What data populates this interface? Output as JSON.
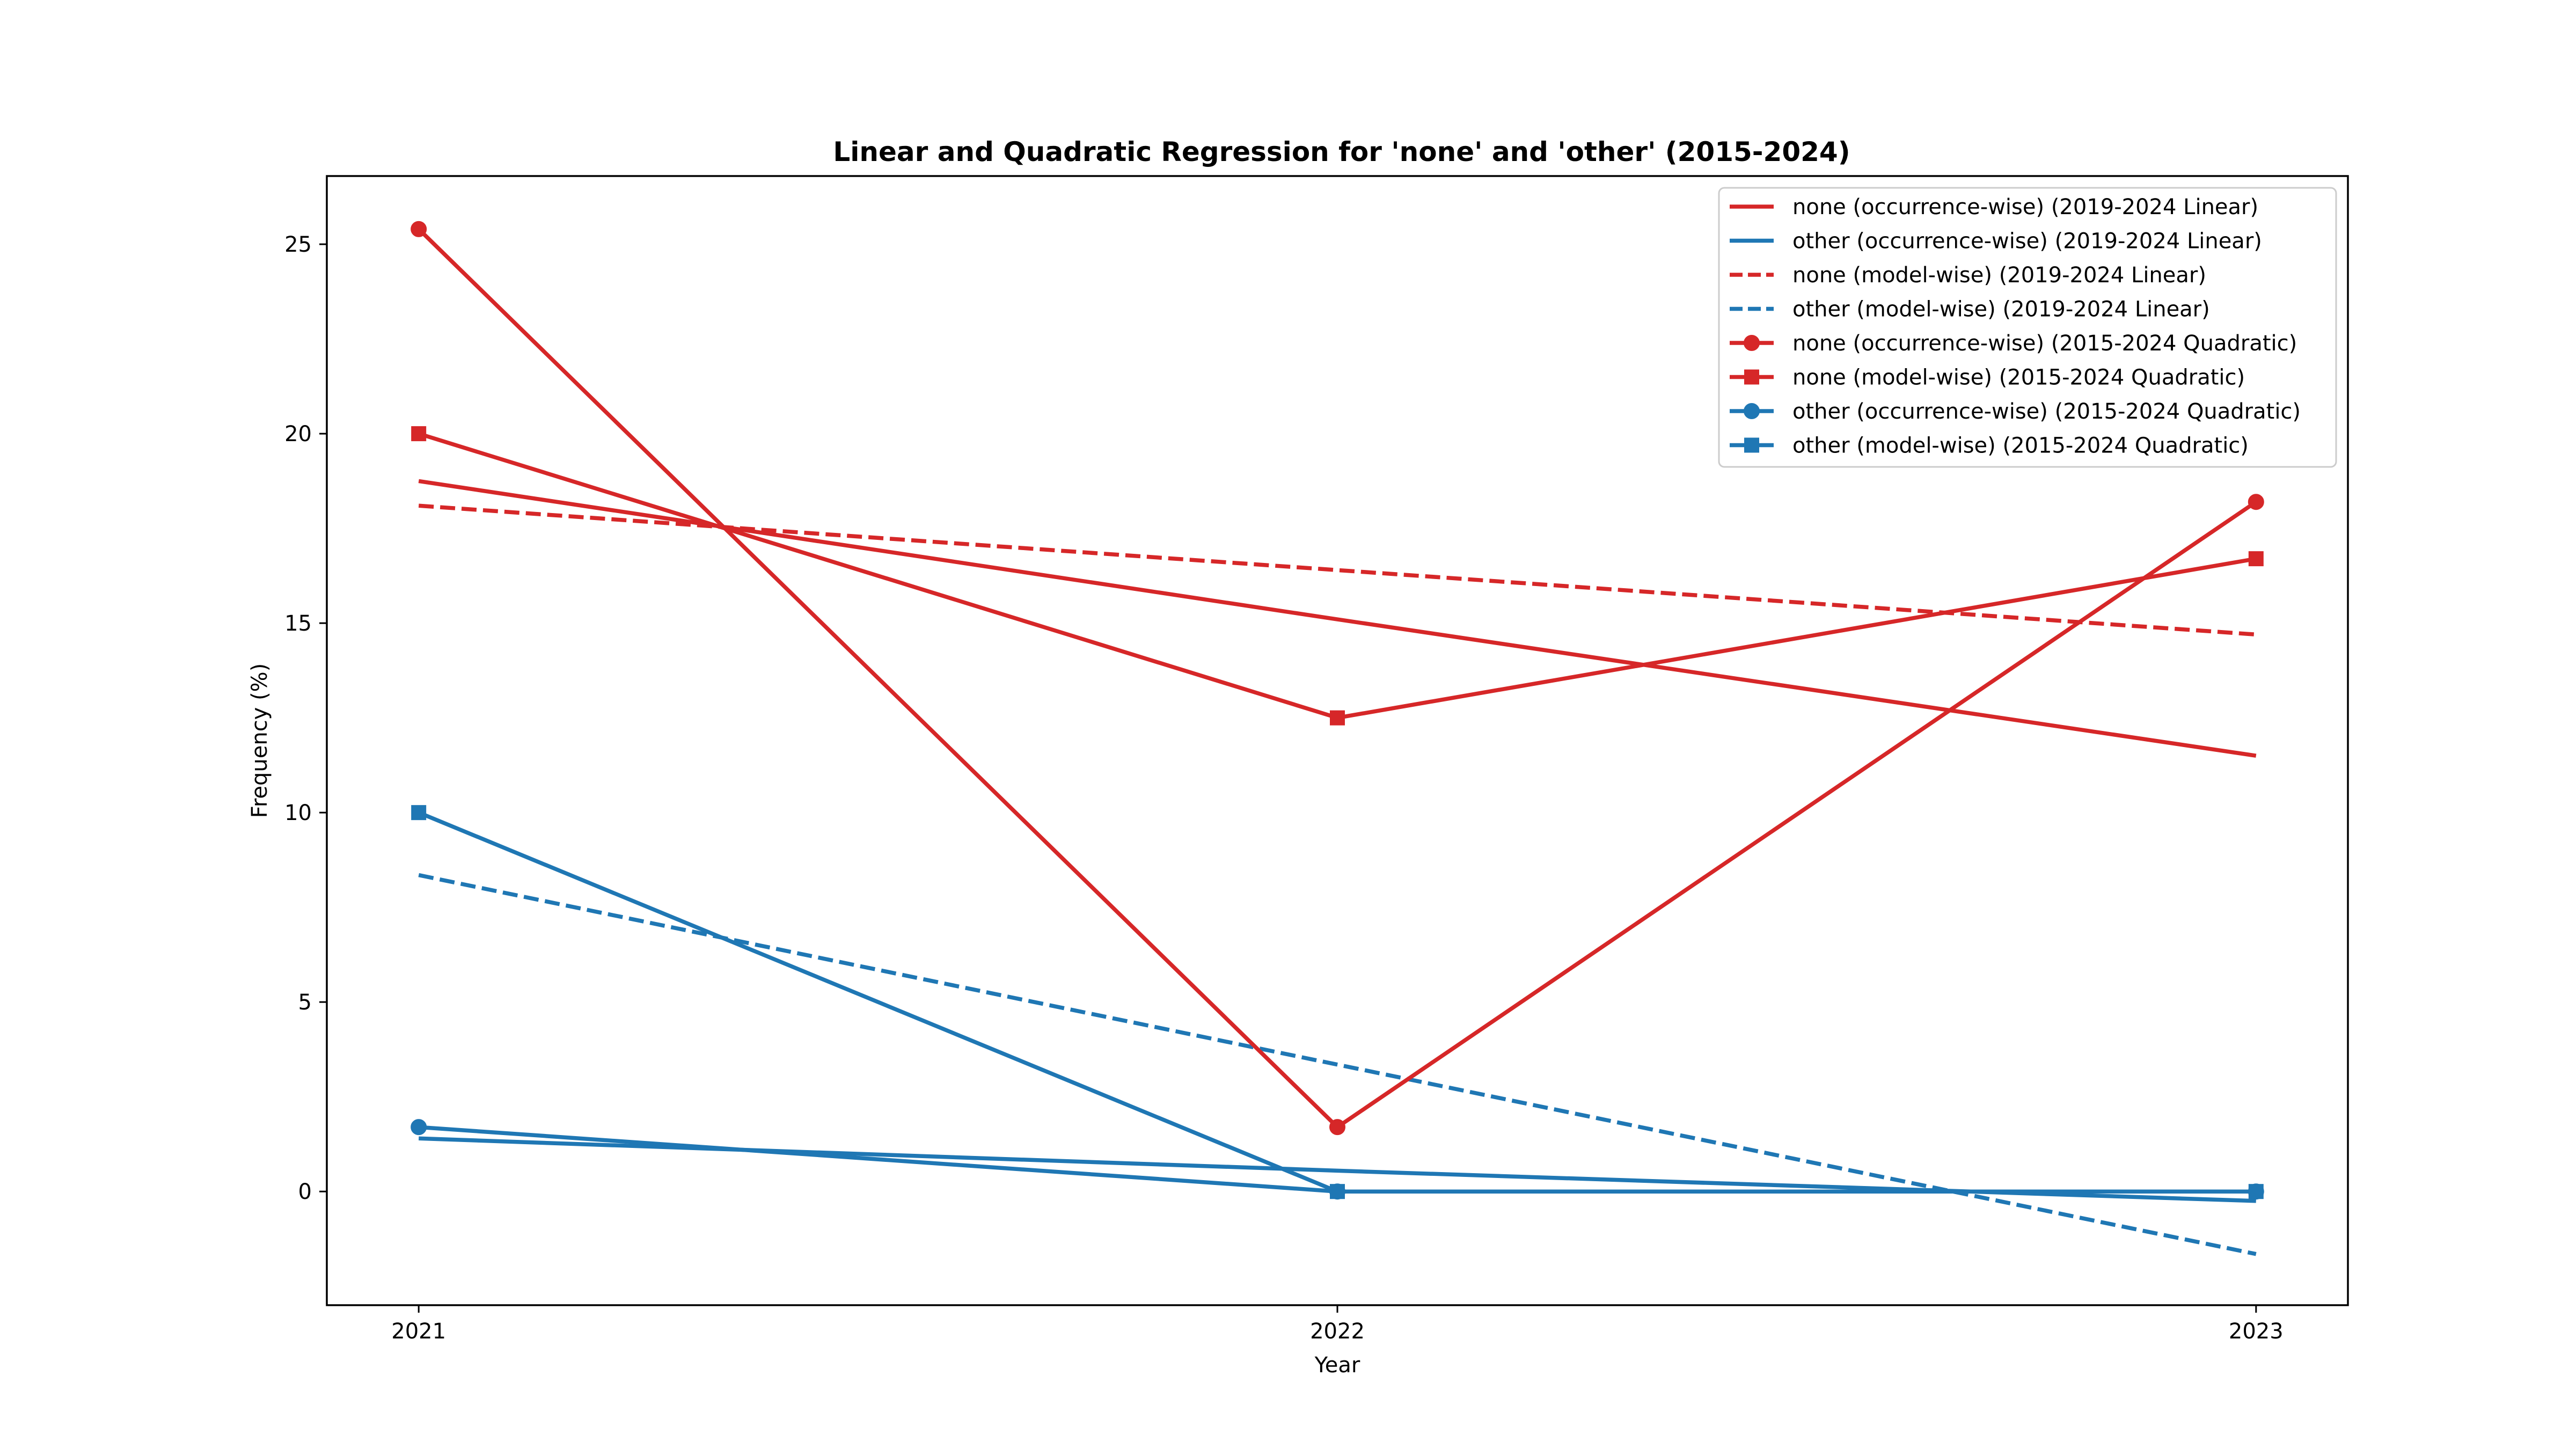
{
  "chart_data": {
    "type": "line",
    "title": "Linear and Quadratic Regression for 'none' and 'other' (2015-2024)",
    "xlabel": "Year",
    "ylabel": "Frequency (%)",
    "x": [
      2021,
      2022,
      2023
    ],
    "x_ticks": [
      2021,
      2022,
      2023
    ],
    "y_ticks": [
      0,
      5,
      10,
      15,
      20,
      25
    ],
    "xlim": [
      2020.9,
      2023.1
    ],
    "ylim": [
      -3.0,
      26.8
    ],
    "grid": false,
    "legend_position": "top-right",
    "colors": {
      "none": "#d62728",
      "other": "#1f77b4"
    },
    "series": [
      {
        "name": "none (occurrence-wise) (2019-2024 Linear)",
        "values": [
          18.75,
          15.1,
          11.5
        ],
        "color": "#d62728",
        "style": "solid",
        "marker": "none"
      },
      {
        "name": "other (occurrence-wise) (2019-2024 Linear)",
        "values": [
          1.4,
          0.55,
          -0.25
        ],
        "color": "#1f77b4",
        "style": "solid",
        "marker": "none"
      },
      {
        "name": "none (model-wise) (2019-2024 Linear)",
        "values": [
          18.1,
          16.4,
          14.7
        ],
        "color": "#d62728",
        "style": "dashed",
        "marker": "none"
      },
      {
        "name": "other (model-wise) (2019-2024 Linear)",
        "values": [
          8.35,
          3.35,
          -1.65
        ],
        "color": "#1f77b4",
        "style": "dashed",
        "marker": "none"
      },
      {
        "name": "none (occurrence-wise) (2015-2024 Quadratic)",
        "values": [
          25.4,
          1.7,
          18.2
        ],
        "color": "#d62728",
        "style": "solid",
        "marker": "circle"
      },
      {
        "name": "none (model-wise) (2015-2024 Quadratic)",
        "values": [
          20.0,
          12.5,
          16.7
        ],
        "color": "#d62728",
        "style": "solid",
        "marker": "square"
      },
      {
        "name": "other (occurrence-wise) (2015-2024 Quadratic)",
        "values": [
          1.7,
          0.0,
          0.0
        ],
        "color": "#1f77b4",
        "style": "solid",
        "marker": "circle"
      },
      {
        "name": "other (model-wise) (2015-2024 Quadratic)",
        "values": [
          10.0,
          0.0,
          0.0
        ],
        "color": "#1f77b4",
        "style": "solid",
        "marker": "square"
      }
    ]
  }
}
